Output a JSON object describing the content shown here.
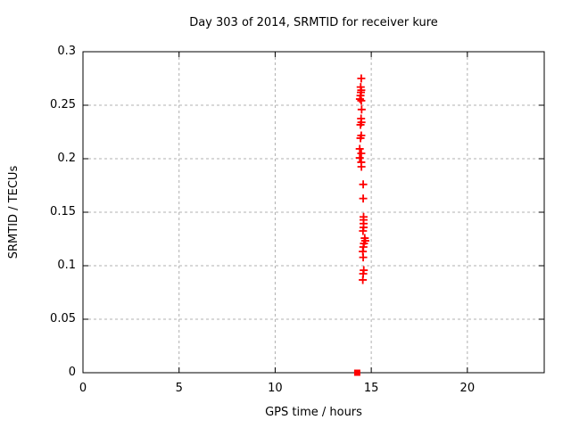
{
  "background_color": "#ffffff",
  "text_color": "#000000",
  "chart_data": {
    "type": "scatter",
    "title": "Day 303 of 2014, SRMTID for receiver kure",
    "xlabel": "GPS time / hours",
    "ylabel": "SRMTID / TECUs",
    "xlim": [
      0,
      24
    ],
    "ylim": [
      0,
      0.3
    ],
    "xticks": [
      0,
      5,
      10,
      15,
      20
    ],
    "xtick_labels": [
      "0",
      "5",
      "10",
      "15",
      "20"
    ],
    "yticks": [
      0,
      0.05,
      0.1,
      0.15,
      0.2,
      0.25,
      0.3
    ],
    "ytick_labels": [
      "0",
      "0.05",
      "0.1",
      "0.15",
      "0.2",
      "0.25",
      "0.3"
    ],
    "grid": true,
    "grid_color": "#b0b0b0",
    "border_color": "#000000",
    "legend": "none",
    "series": [
      {
        "name": "srmtid-values",
        "marker": "plus",
        "color": "#ff0000",
        "points": [
          [
            14.48,
            0.275
          ],
          [
            14.45,
            0.267
          ],
          [
            14.48,
            0.264
          ],
          [
            14.46,
            0.262
          ],
          [
            14.44,
            0.259
          ],
          [
            14.41,
            0.2558
          ],
          [
            14.48,
            0.2542
          ],
          [
            14.5,
            0.246
          ],
          [
            14.47,
            0.2375
          ],
          [
            14.49,
            0.234
          ],
          [
            14.44,
            0.2317
          ],
          [
            14.48,
            0.2217
          ],
          [
            14.44,
            0.2192
          ],
          [
            14.4,
            0.2092
          ],
          [
            14.48,
            0.205
          ],
          [
            14.4,
            0.2008
          ],
          [
            14.48,
            0.1967
          ],
          [
            14.49,
            0.1925
          ],
          [
            14.58,
            0.176
          ],
          [
            14.58,
            0.1628
          ],
          [
            14.6,
            0.1456
          ],
          [
            14.6,
            0.1428
          ],
          [
            14.6,
            0.1394
          ],
          [
            14.6,
            0.1358
          ],
          [
            14.57,
            0.1325
          ],
          [
            14.66,
            0.1258
          ],
          [
            14.69,
            0.1233
          ],
          [
            14.62,
            0.1208
          ],
          [
            14.59,
            0.1175
          ],
          [
            14.56,
            0.1133
          ],
          [
            14.58,
            0.1078
          ],
          [
            14.61,
            0.0958
          ],
          [
            14.58,
            0.0925
          ],
          [
            14.56,
            0.0867
          ]
        ]
      },
      {
        "name": "zero-baseline-point",
        "marker": "filled-square",
        "color": "#ff0000",
        "points": [
          [
            14.27,
            0.0
          ]
        ]
      }
    ]
  }
}
